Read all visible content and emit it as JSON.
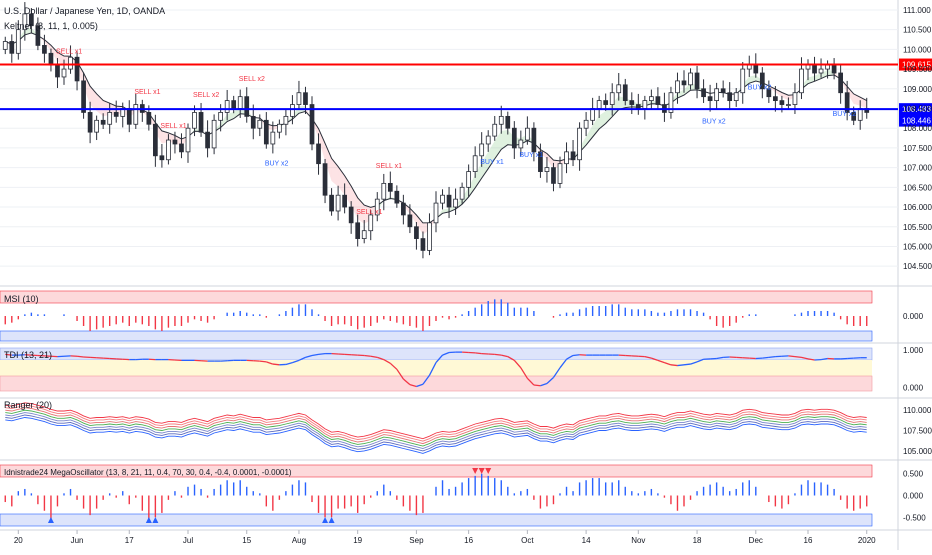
{
  "header": {
    "symbol_title": "U.S. Dollar / Japanese Yen, 1D, OANDA",
    "indicator_label": "Keltner (8, 11, 1, 0.005)"
  },
  "colors": {
    "up": "#2a2e39",
    "down": "#2a2e39",
    "resistance": "#ff0000",
    "support": "#0000ff",
    "sell_text": "#f23645",
    "buy_text": "#2962ff",
    "grid": "#eef0f4"
  },
  "chart_data": [
    {
      "type": "candlestick",
      "title": "U.S. Dollar / Japanese Yen, 1D, OANDA",
      "x_tick_labels": [
        "20",
        "Jun",
        "17",
        "Jul",
        "15",
        "Aug",
        "19",
        "Sep",
        "16",
        "Oct",
        "14",
        "Nov",
        "18",
        "Dec",
        "16",
        "2020"
      ],
      "y_tick_labels": [
        "104.500",
        "105.000",
        "105.500",
        "106.000",
        "106.500",
        "107.000",
        "107.500",
        "108.000",
        "108.500",
        "109.000",
        "109.500",
        "110.000",
        "110.500",
        "111.000"
      ],
      "ylim": [
        104.2,
        111.1
      ],
      "horizontal_lines": [
        {
          "label": "109.615",
          "value": 109.615,
          "color": "#ff0000"
        },
        {
          "label": "108.483",
          "value": 108.483,
          "color": "#0000ff"
        }
      ],
      "price_labels": [
        {
          "label": "108.446",
          "value": 108.446,
          "color": "#0000ff"
        }
      ],
      "closes": [
        110.2,
        109.9,
        110.5,
        110.9,
        110.6,
        110.1,
        109.9,
        109.6,
        109.3,
        109.5,
        109.8,
        109.2,
        108.4,
        107.9,
        108.2,
        108.1,
        108.4,
        108.3,
        108.5,
        108.1,
        108.6,
        108.4,
        108.1,
        107.3,
        107.2,
        107.7,
        107.6,
        107.4,
        108.0,
        108.4,
        107.9,
        107.5,
        108.2,
        108.4,
        108.7,
        108.5,
        108.8,
        108.3,
        108.0,
        108.2,
        107.6,
        107.9,
        108.1,
        108.3,
        108.6,
        108.9,
        108.6,
        107.6,
        107.1,
        106.3,
        105.9,
        106.3,
        106.0,
        105.6,
        105.2,
        105.4,
        105.8,
        106.2,
        106.6,
        106.4,
        106.1,
        105.8,
        105.5,
        105.2,
        104.9,
        105.6,
        106.1,
        106.3,
        106.0,
        106.2,
        106.5,
        106.9,
        107.3,
        107.6,
        107.8,
        108.1,
        108.3,
        108.0,
        107.5,
        107.7,
        108.0,
        107.4,
        106.9,
        107.0,
        106.6,
        107.1,
        107.4,
        107.2,
        108.0,
        108.2,
        108.5,
        108.7,
        108.6,
        108.9,
        109.1,
        108.7,
        108.6,
        108.5,
        108.7,
        108.8,
        108.6,
        108.4,
        108.9,
        109.2,
        109.1,
        109.4,
        109.0,
        108.8,
        108.7,
        109.0,
        108.9,
        108.7,
        108.9,
        109.5,
        109.6,
        109.4,
        109.0,
        108.8,
        108.7,
        108.6,
        108.6,
        108.9,
        109.5,
        109.6,
        109.4,
        109.5,
        109.6,
        109.4,
        108.9,
        108.4,
        108.2,
        108.5,
        108.4
      ]
    },
    {
      "type": "bar",
      "title": "MSI (10)",
      "y_tick_labels": [
        "0.000"
      ],
      "ylim": [
        -0.15,
        0.15
      ],
      "values": [
        -0.05,
        -0.04,
        -0.02,
        0.01,
        0.02,
        0.01,
        0.01,
        0.0,
        0.0,
        0.01,
        0.0,
        -0.03,
        -0.06,
        -0.09,
        -0.08,
        -0.07,
        -0.06,
        -0.05,
        -0.04,
        -0.06,
        -0.04,
        -0.05,
        -0.06,
        -0.08,
        -0.09,
        -0.07,
        -0.06,
        -0.06,
        -0.04,
        -0.02,
        -0.03,
        -0.04,
        -0.02,
        0.0,
        0.02,
        0.02,
        0.03,
        0.02,
        0.01,
        0.01,
        -0.01,
        0.0,
        0.01,
        0.03,
        0.05,
        0.07,
        0.07,
        0.04,
        0.01,
        -0.03,
        -0.06,
        -0.05,
        -0.05,
        -0.06,
        -0.08,
        -0.07,
        -0.06,
        -0.04,
        -0.02,
        -0.03,
        -0.04,
        -0.05,
        -0.06,
        -0.07,
        -0.09,
        -0.06,
        -0.03,
        -0.01,
        -0.02,
        -0.01,
        0.01,
        0.03,
        0.05,
        0.07,
        0.09,
        0.1,
        0.1,
        0.08,
        0.05,
        0.05,
        0.05,
        0.03,
        0.0,
        0.0,
        -0.01,
        0.01,
        0.02,
        0.02,
        0.04,
        0.05,
        0.06,
        0.06,
        0.06,
        0.07,
        0.07,
        0.05,
        0.04,
        0.04,
        0.04,
        0.03,
        0.02,
        0.02,
        0.03,
        0.04,
        0.04,
        0.04,
        0.03,
        0.02,
        -0.02,
        -0.06,
        -0.07,
        -0.06,
        -0.04,
        -0.01,
        0.01,
        0.01,
        0.0,
        0.0,
        0.0,
        0.0,
        0.0,
        0.01,
        0.02,
        0.03,
        0.03,
        0.03,
        0.03,
        0.02,
        -0.02,
        -0.05,
        -0.06,
        -0.06,
        -0.06
      ]
    },
    {
      "type": "line",
      "title": "TDI (13, 21)",
      "y_tick_labels": [
        "1.000",
        "0.000"
      ],
      "ylim": [
        -0.1,
        1.05
      ],
      "values": [
        0.88,
        0.86,
        0.86,
        0.87,
        0.86,
        0.85,
        0.84,
        0.83,
        0.82,
        0.83,
        0.84,
        0.83,
        0.81,
        0.8,
        0.79,
        0.78,
        0.77,
        0.76,
        0.75,
        0.74,
        0.74,
        0.75,
        0.75,
        0.74,
        0.74,
        0.74,
        0.73,
        0.72,
        0.72,
        0.72,
        0.71,
        0.7,
        0.7,
        0.7,
        0.71,
        0.72,
        0.72,
        0.72,
        0.71,
        0.7,
        0.68,
        0.62,
        0.6,
        0.61,
        0.66,
        0.72,
        0.8,
        0.85,
        0.88,
        0.9,
        0.9,
        0.89,
        0.88,
        0.87,
        0.86,
        0.85,
        0.83,
        0.8,
        0.74,
        0.64,
        0.48,
        0.22,
        0.07,
        0.02,
        0.08,
        0.32,
        0.66,
        0.86,
        0.93,
        0.94,
        0.94,
        0.93,
        0.92,
        0.9,
        0.89,
        0.88,
        0.86,
        0.82,
        0.72,
        0.52,
        0.24,
        0.06,
        0.04,
        0.1,
        0.26,
        0.52,
        0.75,
        0.85,
        0.87,
        0.86,
        0.86,
        0.86,
        0.86,
        0.86,
        0.86,
        0.85,
        0.84,
        0.83,
        0.82,
        0.78,
        0.72,
        0.66,
        0.6,
        0.58,
        0.6,
        0.62,
        0.68,
        0.75,
        0.76,
        0.77,
        0.8,
        0.81,
        0.8,
        0.79,
        0.78,
        0.77,
        0.78,
        0.8,
        0.82,
        0.83,
        0.84,
        0.82,
        0.8,
        0.76,
        0.73,
        0.74,
        0.77,
        0.76,
        0.76,
        0.77,
        0.78,
        0.79,
        0.79
      ]
    },
    {
      "type": "line",
      "title": "Ranger (20)",
      "y_tick_labels": [
        "110.000",
        "107.500",
        "105.000"
      ],
      "ylim": [
        104.5,
        111.0
      ],
      "values": [
        109.7,
        109.6,
        109.8,
        110.0,
        109.9,
        109.7,
        109.5,
        109.2,
        109.0,
        109.0,
        109.1,
        108.8,
        108.4,
        108.1,
        108.2,
        108.2,
        108.3,
        108.2,
        108.3,
        108.1,
        108.3,
        108.2,
        108.0,
        107.6,
        107.5,
        107.7,
        107.7,
        107.6,
        107.9,
        108.1,
        107.9,
        107.7,
        108.1,
        108.3,
        108.5,
        108.4,
        108.6,
        108.4,
        108.2,
        108.2,
        107.9,
        108.0,
        108.1,
        108.3,
        108.5,
        108.7,
        108.5,
        107.9,
        107.4,
        106.8,
        106.4,
        106.5,
        106.3,
        106.0,
        105.8,
        105.9,
        106.1,
        106.4,
        106.7,
        106.6,
        106.4,
        106.2,
        106.0,
        105.8,
        105.6,
        105.9,
        106.3,
        106.5,
        106.4,
        106.5,
        106.8,
        107.1,
        107.4,
        107.6,
        107.8,
        108.0,
        108.1,
        107.9,
        107.6,
        107.7,
        107.8,
        107.4,
        107.1,
        107.1,
        106.9,
        107.2,
        107.4,
        107.3,
        107.8,
        108.0,
        108.2,
        108.4,
        108.4,
        108.6,
        108.7,
        108.5,
        108.4,
        108.4,
        108.5,
        108.6,
        108.5,
        108.3,
        108.6,
        108.8,
        108.8,
        109.0,
        108.8,
        108.6,
        108.5,
        108.7,
        108.6,
        108.5,
        108.7,
        109.1,
        109.2,
        109.1,
        108.8,
        108.7,
        108.6,
        108.5,
        108.5,
        108.7,
        109.1,
        109.2,
        109.1,
        109.2,
        109.2,
        109.1,
        108.8,
        108.4,
        108.2,
        108.3,
        108.2
      ]
    },
    {
      "type": "bar",
      "title": "Idnistrade24 MegaOscillator (13, 8, 21, 11, 0.4, 70, 30, 0.4, -0.4, 0.0001, -0.0001)",
      "y_tick_labels": [
        "0.500",
        "0.000",
        "-0.500"
      ],
      "ylim": [
        -0.7,
        0.7
      ],
      "values": [
        -0.15,
        -0.25,
        0.1,
        0.15,
        0.05,
        -0.2,
        -0.35,
        -0.55,
        -0.25,
        0.05,
        0.15,
        -0.1,
        -0.3,
        -0.45,
        -0.3,
        -0.1,
        0.05,
        -0.05,
        0.1,
        -0.2,
        -0.05,
        -0.35,
        -0.55,
        -0.5,
        -0.4,
        -0.1,
        0.1,
        -0.05,
        0.2,
        0.25,
        0.15,
        -0.05,
        0.15,
        0.25,
        0.35,
        0.3,
        0.35,
        0.2,
        0.1,
        0.05,
        -0.25,
        -0.35,
        -0.1,
        0.1,
        0.25,
        0.35,
        0.3,
        -0.15,
        -0.4,
        -0.5,
        -0.5,
        -0.3,
        -0.3,
        -0.25,
        -0.4,
        -0.2,
        -0.05,
        0.1,
        0.25,
        0.1,
        -0.1,
        -0.25,
        -0.35,
        -0.45,
        -0.4,
        0.0,
        0.2,
        0.35,
        0.15,
        0.2,
        0.3,
        0.4,
        0.45,
        0.5,
        0.45,
        0.4,
        0.35,
        0.2,
        0.05,
        0.1,
        0.15,
        -0.1,
        -0.3,
        -0.25,
        -0.2,
        0.05,
        0.2,
        0.1,
        0.3,
        0.35,
        0.4,
        0.4,
        0.3,
        0.3,
        0.35,
        0.2,
        0.1,
        0.05,
        0.1,
        0.15,
        0.05,
        -0.05,
        -0.2,
        -0.35,
        -0.25,
        -0.1,
        0.1,
        0.2,
        0.25,
        0.3,
        0.2,
        0.1,
        0.15,
        0.3,
        0.35,
        0.2,
        0.0,
        -0.15,
        -0.25,
        -0.3,
        -0.2,
        0.05,
        0.25,
        0.35,
        0.3,
        0.3,
        0.25,
        0.15,
        -0.1,
        -0.3,
        -0.35,
        -0.3,
        -0.25
      ]
    }
  ],
  "annotations": {
    "sell": [
      "SELL x1",
      "SELL x1",
      "SELL x1",
      "SELL x2",
      "SELL x2",
      "SELL x1",
      "SELL x1"
    ],
    "buy": [
      "BUY x2",
      "BUY x1",
      "BUY x1",
      "BUY x2",
      "BUY x2",
      "BUY x2"
    ]
  }
}
